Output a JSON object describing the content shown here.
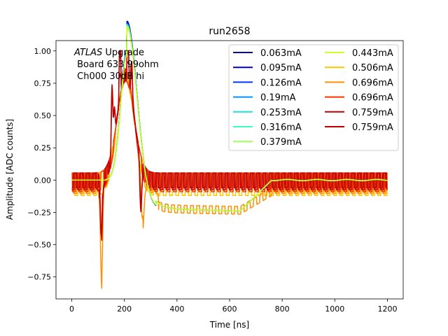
{
  "chart_data": {
    "type": "line",
    "title": "run2658",
    "xlabel": "Time [ns]",
    "ylabel": "Amplitude [ADC counts]",
    "xlim": [
      -60,
      1260
    ],
    "ylim": [
      -0.92,
      1.08
    ],
    "xticks": [
      0,
      200,
      400,
      600,
      800,
      1000,
      1200
    ],
    "yticks": [
      -0.75,
      -0.5,
      -0.25,
      0.0,
      0.25,
      0.5,
      0.75,
      1.0
    ],
    "xtick_labels": [
      "0",
      "200",
      "400",
      "600",
      "800",
      "1000",
      "1200"
    ],
    "ytick_labels": [
      "−0.75",
      "−0.50",
      "−0.25",
      "0.00",
      "0.25",
      "0.50",
      "0.75",
      "1.00"
    ],
    "grid": false,
    "legend_position": "upper-right",
    "legend_columns": 2,
    "annotation": {
      "line1_italic": "ATLAS",
      "line1_rest": " Upgrade",
      "line2": " Board 633 99ohm",
      "line3": " Ch000 30dB hi"
    },
    "series": [
      {
        "name": "0.063mA",
        "color": "#00007f",
        "kind": "pulse",
        "scale": 1.0
      },
      {
        "name": "0.095mA",
        "color": "#0000d4",
        "kind": "pulse",
        "scale": 0.99
      },
      {
        "name": "0.126mA",
        "color": "#0034ff",
        "kind": "pulse",
        "scale": 0.99
      },
      {
        "name": "0.19mA",
        "color": "#0090ff",
        "kind": "pulse",
        "scale": 0.98
      },
      {
        "name": "0.253mA",
        "color": "#1ce0da",
        "kind": "pulse",
        "scale": 0.98
      },
      {
        "name": "0.316mA",
        "color": "#3dffba",
        "kind": "pulse",
        "scale": 0.97
      },
      {
        "name": "0.379mA",
        "color": "#9cff5a",
        "kind": "pulse",
        "scale": 0.97
      },
      {
        "name": "0.443mA",
        "color": "#cdff29",
        "kind": "pulse",
        "scale": 0.96
      },
      {
        "name": "0.506mA",
        "color": "#ffc400",
        "kind": "saturated",
        "phase": 0
      },
      {
        "name": "0.696mA",
        "color": "#ff9100",
        "kind": "saturated",
        "phase": 1
      },
      {
        "name": "0.696mA",
        "color": "#ff3000",
        "kind": "saturated",
        "phase": 2
      },
      {
        "name": "0.759mA",
        "color": "#c00000",
        "kind": "saturated",
        "phase": 3
      },
      {
        "name": "0.759mA",
        "color": "#c00000",
        "kind": "saturated",
        "phase": 4
      }
    ]
  }
}
